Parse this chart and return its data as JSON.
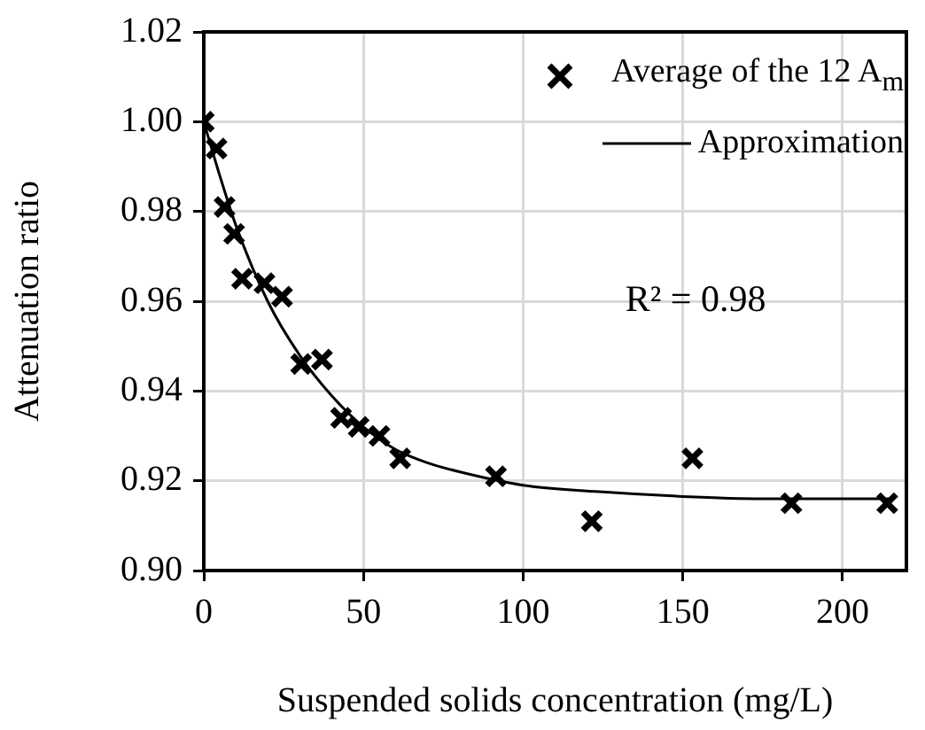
{
  "chart_data": {
    "type": "scatter",
    "xlabel": "Suspended solids concentration (mg/L)",
    "ylabel": "Attenuation ratio",
    "xlim": [
      0,
      220
    ],
    "xticks": [
      0,
      50,
      100,
      150,
      200
    ],
    "ylim": [
      0.9,
      1.02
    ],
    "yticks": [
      {
        "value": 0.9,
        "label": "0.90"
      },
      0.92,
      0.94,
      0.96,
      0.98,
      {
        "value": 1,
        "label": "1.00"
      },
      1.02
    ],
    "grid": true,
    "legend": "top right",
    "annotations": [
      "R² = 0.98"
    ],
    "series": [
      {
        "name": "Average of  the 12 A$_{m}$",
        "marker": "cross",
        "color": "#000000",
        "x": [
          0,
          4,
          6.5,
          9.5,
          12,
          19,
          24.5,
          30.5,
          37,
          43,
          48.5,
          55,
          61.5,
          91.5,
          121.5,
          153,
          184,
          214
        ],
        "values": [
          1.0,
          0.994,
          0.981,
          0.975,
          0.965,
          0.964,
          0.961,
          0.946,
          0.947,
          0.934,
          0.932,
          0.93,
          0.925,
          0.921,
          0.911,
          0.925,
          0.915,
          0.915
        ]
      },
      {
        "name": "Approximation",
        "type": "line",
        "marker": "none",
        "line_style": "solid",
        "color": "#000000",
        "x": [
          0,
          5,
          10,
          20,
          30,
          40,
          50,
          60,
          70,
          80,
          100,
          125,
          150,
          175,
          200,
          215
        ],
        "values": [
          1.0,
          0.988,
          0.977,
          0.96,
          0.948,
          0.939,
          0.932,
          0.927,
          0.924,
          0.922,
          0.919,
          0.9175,
          0.9165,
          0.916,
          0.916,
          0.916
        ]
      }
    ]
  }
}
